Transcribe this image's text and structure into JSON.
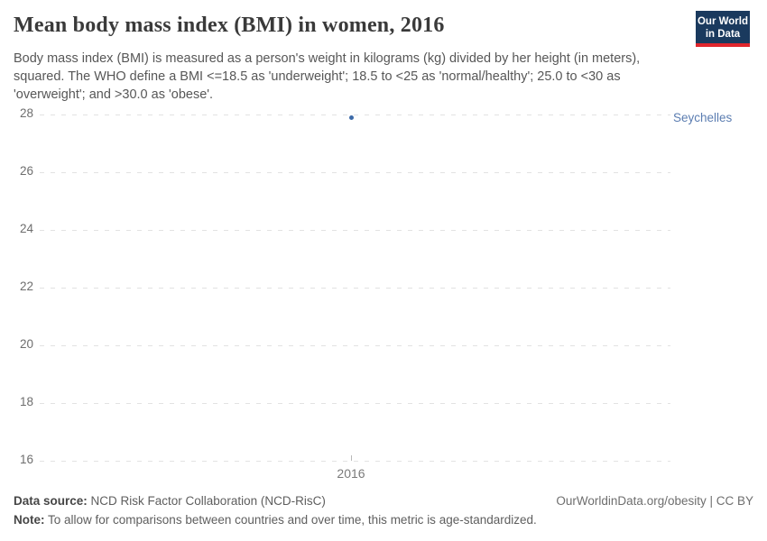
{
  "header": {
    "title": "Mean body mass index (BMI) in women, 2016",
    "subtitle": "Body mass index (BMI) is measured as a person's weight in kilograms (kg) divided by her height (in meters), squared. The WHO define a BMI <=18.5 as 'underweight'; 18.5 to <25 as 'normal/healthy'; 25.0 to <30 as 'overweight'; and >30.0 as 'obese'.",
    "logo": {
      "line1": "Our World",
      "line2": "in Data",
      "background_color": "#1a3a5e",
      "bar_color": "#e0262d"
    }
  },
  "chart_data": {
    "type": "scatter",
    "title": "Mean body mass index (BMI) in women, 2016",
    "x": [
      2016
    ],
    "series": [
      {
        "name": "Seychelles",
        "values": [
          27.9
        ]
      }
    ],
    "xlabel": "",
    "ylabel": "",
    "ylim": [
      16,
      28.4
    ],
    "yticks": [
      28,
      26,
      24,
      22,
      20,
      18,
      16
    ],
    "xticks": [
      "2016"
    ],
    "grid": true,
    "gridline_style": "dashed",
    "point_color": "#3d6aa8",
    "entity_label_color": "#5b7db1",
    "legend_position": "right-of-plot"
  },
  "footer": {
    "datasource_label": "Data source:",
    "datasource_value": " NCD Risk Factor Collaboration (NCD-RisC)",
    "rights": "OurWorldinData.org/obesity | CC BY",
    "note_label": "Note:",
    "note_value": " To allow for comparisons between countries and over time, this metric is age-standardized."
  }
}
